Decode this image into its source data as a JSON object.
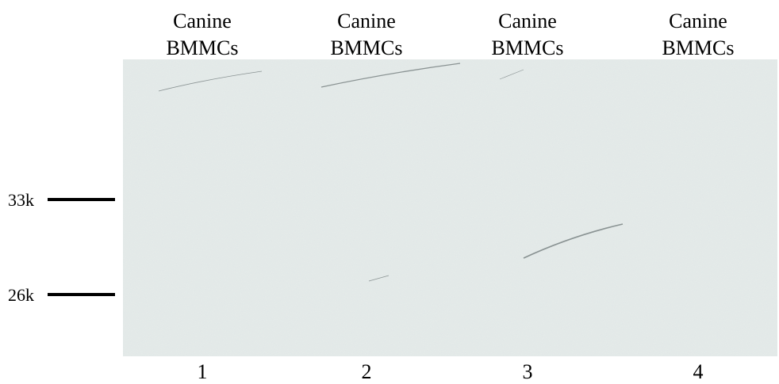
{
  "lanes": [
    {
      "header": [
        "Canine",
        "BMMCs"
      ],
      "number": "1"
    },
    {
      "header": [
        "Canine",
        "BMMCs"
      ],
      "number": "2"
    },
    {
      "header": [
        "Canine",
        "BMMCs"
      ],
      "number": "3"
    },
    {
      "header": [
        "Canine",
        "BMMCs"
      ],
      "number": "4"
    }
  ],
  "markers": [
    {
      "label": "33k"
    },
    {
      "label": "26k"
    }
  ]
}
